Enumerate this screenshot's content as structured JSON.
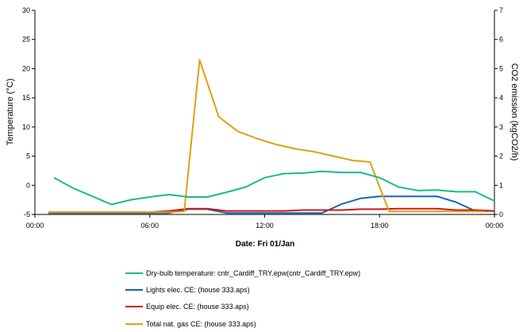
{
  "chart_data": {
    "type": "line",
    "xlabel": "Date: Fri 01/Jan",
    "ylabel": "Temperature (°C)",
    "y2label": "CO2 emission (kgCO2/h)",
    "x_ticks": [
      "00:00",
      "06:00",
      "12:00",
      "18:00",
      "00:00"
    ],
    "x_unit": "hours",
    "xlim": [
      0,
      24
    ],
    "ylim": [
      -5,
      30
    ],
    "y_ticks": [
      "-5",
      "0",
      "5",
      "10",
      "15",
      "20",
      "25",
      "30"
    ],
    "y2lim": [
      0,
      7
    ],
    "y2_ticks": [
      "0",
      "1",
      "2",
      "3",
      "4",
      "5",
      "6",
      "7"
    ],
    "grid": false,
    "legend_position": "bottom",
    "series": [
      {
        "name": "Dry-bulb temperature: cntr_Cardiff_TRY.epw(cntr_Cardiff_TRY.epw)",
        "axis": "left",
        "color": "#1aba8f",
        "x": [
          1,
          2,
          3,
          4,
          5,
          6,
          7,
          8,
          9,
          10,
          11,
          12,
          13,
          14,
          15,
          16,
          17,
          18,
          19,
          20,
          21,
          22,
          23,
          24
        ],
        "y": [
          1.3,
          -0.5,
          -1.9,
          -3.3,
          -2.5,
          -2.0,
          -1.6,
          -2.0,
          -2.0,
          -1.2,
          -0.3,
          1.3,
          2.0,
          2.1,
          2.4,
          2.2,
          2.2,
          1.3,
          -0.3,
          -0.9,
          -0.8,
          -1.1,
          -1.1,
          -2.7
        ]
      },
      {
        "name": "Lights elec. CE:  (house 333.aps)",
        "axis": "right",
        "color": "#1466b8",
        "x": [
          0.7,
          1,
          2,
          3,
          4,
          5,
          6,
          7,
          8,
          9,
          10,
          11,
          12,
          13,
          14,
          15,
          16,
          17,
          18,
          19,
          20,
          21,
          22,
          23,
          24
        ],
        "y": [
          0.05,
          0.05,
          0.05,
          0.05,
          0.05,
          0.05,
          0.05,
          0.05,
          0.18,
          0.18,
          0.05,
          0.05,
          0.05,
          0.05,
          0.05,
          0.05,
          0.35,
          0.55,
          0.62,
          0.62,
          0.62,
          0.62,
          0.42,
          0.12,
          0.12
        ]
      },
      {
        "name": "Equip elec. CE:  (house 333.aps)",
        "axis": "right",
        "color": "#d01515",
        "x": [
          0.7,
          1,
          2,
          3,
          4,
          5,
          6,
          7,
          8,
          9,
          10,
          11,
          12,
          13,
          14,
          15,
          16,
          17,
          18,
          19,
          20,
          21,
          22,
          23,
          24
        ],
        "y": [
          0.08,
          0.08,
          0.08,
          0.08,
          0.08,
          0.08,
          0.08,
          0.12,
          0.2,
          0.2,
          0.12,
          0.12,
          0.12,
          0.12,
          0.15,
          0.15,
          0.15,
          0.18,
          0.18,
          0.2,
          0.2,
          0.2,
          0.15,
          0.15,
          0.12
        ]
      },
      {
        "name": "Total nat. gas CE:  (house 333.aps)",
        "axis": "right",
        "color": "#e0a010",
        "x": [
          0.7,
          1,
          2,
          3,
          4,
          5,
          6,
          7,
          7.8,
          8.6,
          9.6,
          10.6,
          11.6,
          12.6,
          13.6,
          14.6,
          15.6,
          16.6,
          17.5,
          18.5,
          19.5,
          20.5,
          21.5,
          22.5,
          23.5
        ],
        "y": [
          0.08,
          0.08,
          0.08,
          0.08,
          0.08,
          0.08,
          0.08,
          0.08,
          0.1,
          5.3,
          3.35,
          2.85,
          2.6,
          2.4,
          2.25,
          2.15,
          2.0,
          1.85,
          1.8,
          0.1,
          0.1,
          0.1,
          0.1,
          0.1,
          0.1
        ]
      }
    ]
  }
}
